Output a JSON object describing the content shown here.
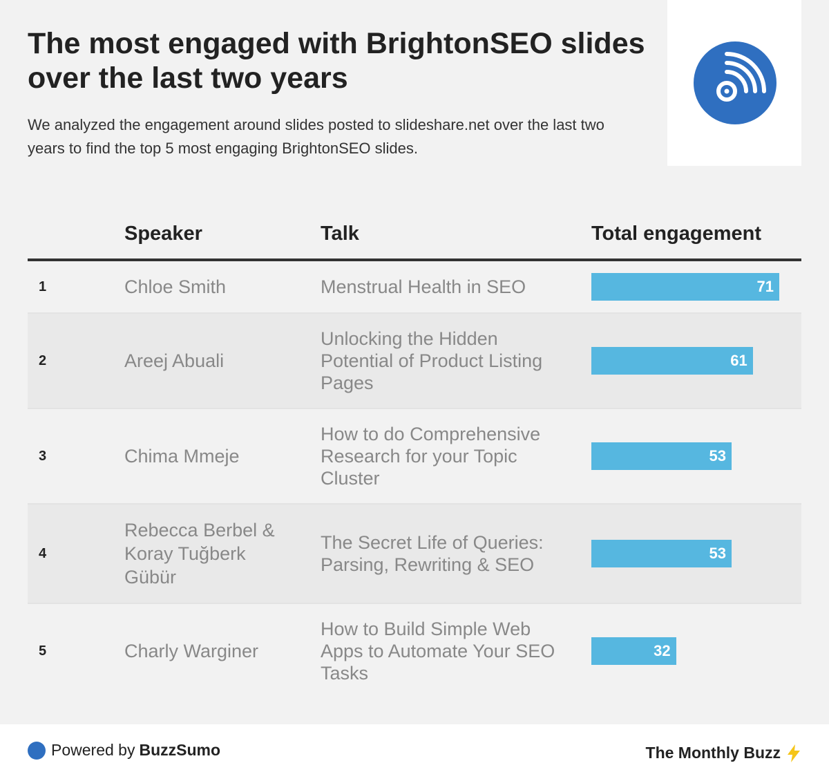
{
  "header": {
    "title": "The most engaged with BrightonSEO slides over the last two years",
    "subtitle": "We analyzed the engagement around slides posted to slideshare.net over the last two years to find the top 5 most engaging BrightonSEO slides."
  },
  "logo": {
    "icon": "broadcast-signal-icon",
    "color": "#2f6fc0"
  },
  "chart_data": {
    "type": "table",
    "columns": [
      "",
      "Speaker",
      "Talk",
      "Total engagement"
    ],
    "rows": [
      {
        "rank": "1",
        "speaker": "Chloe Smith",
        "talk": "Menstrual Health in SEO",
        "engagement": 71
      },
      {
        "rank": "2",
        "speaker": "Areej Abuali",
        "talk": "Unlocking the Hidden Potential of Product Listing Pages",
        "engagement": 61
      },
      {
        "rank": "3",
        "speaker": "Chima Mmeje",
        "talk": "How to do Comprehensive Research for your Topic Cluster",
        "engagement": 53
      },
      {
        "rank": "4",
        "speaker": "Rebecca Berbel & Koray Tuğberk Gübür",
        "talk": "The Secret Life of Queries: Parsing, Rewriting & SEO",
        "engagement": 53
      },
      {
        "rank": "5",
        "speaker": "Charly Warginer",
        "talk": "How to Build Simple Web Apps to Automate Your SEO Tasks",
        "engagement": 32
      }
    ],
    "bar_max": 71,
    "bar_color": "#56b7e0"
  },
  "footer": {
    "powered_prefix": "Powered by",
    "powered_brand": "BuzzSumo",
    "newsletter": "The Monthly Buzz",
    "bolt_icon": "lightning-bolt-icon",
    "brand_color": "#2f6fc0"
  }
}
